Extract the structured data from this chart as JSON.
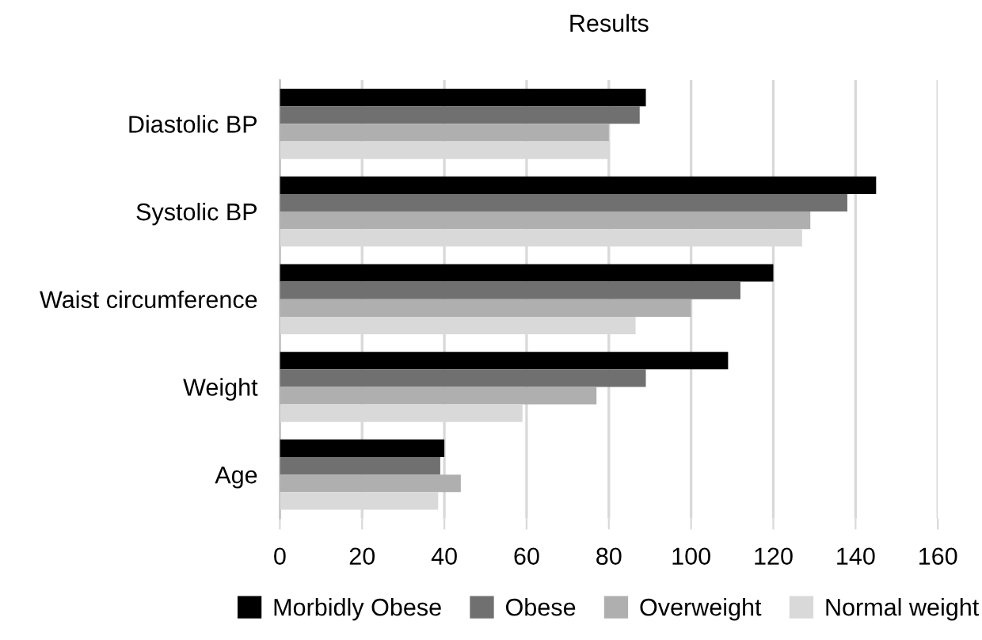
{
  "chart_data": {
    "type": "bar",
    "orientation": "horizontal",
    "title": "Results",
    "categories": [
      "Diastolic BP",
      "Systolic BP",
      "Waist circumference",
      "Weight",
      "Age"
    ],
    "series": [
      {
        "name": "Morbidly Obese",
        "color": "#000000",
        "values": [
          89,
          145,
          120,
          109,
          40
        ]
      },
      {
        "name": "Obese",
        "color": "#707070",
        "values": [
          87.5,
          138,
          112,
          89,
          39
        ]
      },
      {
        "name": "Overweight",
        "color": "#afafaf",
        "values": [
          80,
          129,
          100,
          77,
          44
        ]
      },
      {
        "name": "Normal weight",
        "color": "#d9d9d9",
        "values": [
          80,
          127,
          86.5,
          59,
          38.5
        ]
      }
    ],
    "xlim": [
      0,
      160
    ],
    "xticks": [
      0,
      20,
      40,
      60,
      80,
      100,
      120,
      140,
      160
    ],
    "grid": "x",
    "legend": "bottom"
  }
}
